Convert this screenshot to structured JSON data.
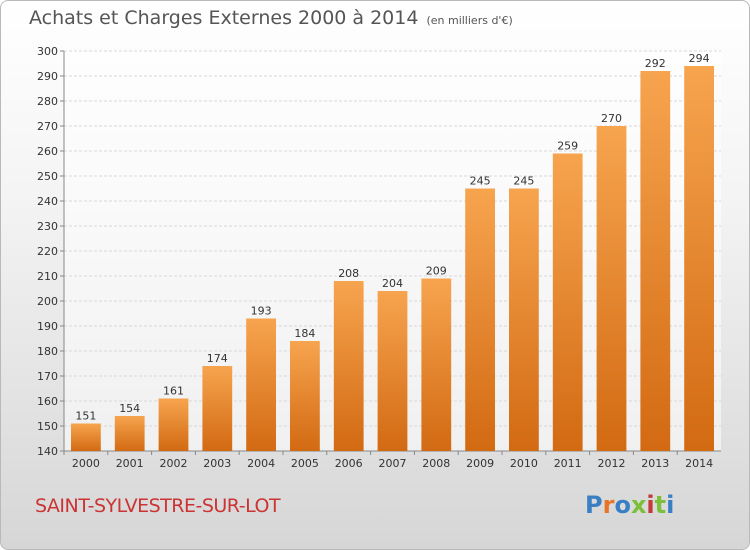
{
  "header": {
    "title": "Achats et Charges Externes 2000 à 2014",
    "subtitle": "(en milliers d'€)"
  },
  "footer": {
    "commune": "SAINT-SYLVESTRE-SUR-LOT",
    "logo_text": "Proxiti"
  },
  "colors": {
    "bar_light": "#f7a44f",
    "bar_dark": "#d26a12",
    "commune_text": "#cc3333",
    "logo_letters": [
      "#3a7fc4",
      "#e8742a",
      "#3a7fc4",
      "#7bbf3a",
      "#c43a3a",
      "#7bbf3a",
      "#3a7fc4"
    ]
  },
  "chart_data": {
    "type": "bar",
    "categories": [
      "2000",
      "2001",
      "2002",
      "2003",
      "2004",
      "2005",
      "2006",
      "2007",
      "2008",
      "2009",
      "2010",
      "2011",
      "2012",
      "2013",
      "2014"
    ],
    "values": [
      151,
      154,
      161,
      174,
      193,
      184,
      208,
      204,
      209,
      245,
      245,
      259,
      270,
      292,
      294
    ],
    "ylim": [
      140,
      300
    ],
    "yticks": [
      140,
      150,
      160,
      170,
      180,
      190,
      200,
      210,
      220,
      230,
      240,
      250,
      260,
      270,
      280,
      290,
      300
    ],
    "grid": true,
    "xlabel": "",
    "ylabel": ""
  }
}
